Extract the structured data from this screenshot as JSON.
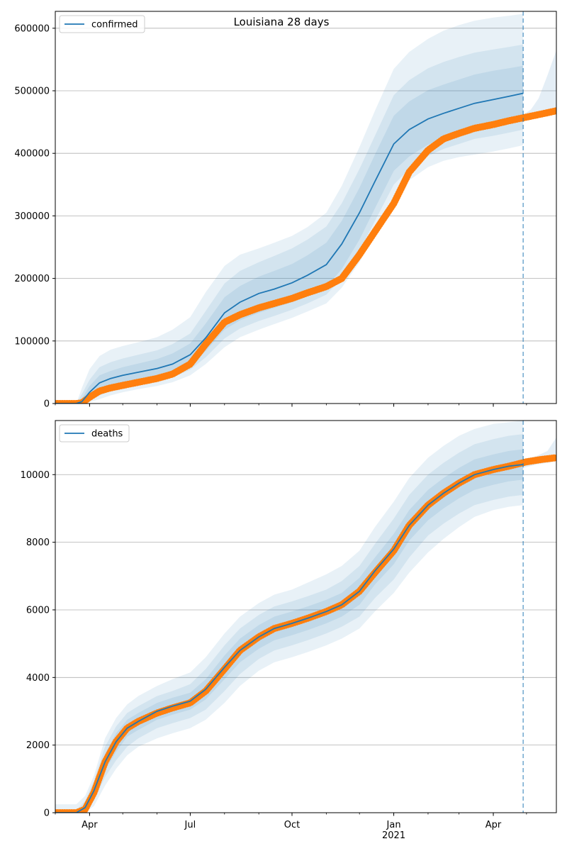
{
  "title": "Louisiana 28 days",
  "colors": {
    "line": "#1f77b4",
    "band": "#1f77b4",
    "observed": "#ff7f0e",
    "grid": "#b0b0b0"
  },
  "chart_data": [
    {
      "type": "line",
      "name": "confirmed-panel",
      "legend": [
        "confirmed"
      ],
      "legend_position": "top-left",
      "grid": "y",
      "xlim": [
        "2020-03-01",
        "2021-05-28"
      ],
      "ylim": [
        0,
        627000
      ],
      "y_ticks": [
        0,
        100000,
        200000,
        300000,
        400000,
        500000,
        600000
      ],
      "x_ticks": [
        {
          "date": "2020-04-01",
          "label": "Apr",
          "sublabel": ""
        },
        {
          "date": "2020-07-01",
          "label": "Jul",
          "sublabel": ""
        },
        {
          "date": "2020-10-01",
          "label": "Oct",
          "sublabel": ""
        },
        {
          "date": "2021-01-01",
          "label": "Jan",
          "sublabel": ""
        },
        {
          "date": "2021-04-01",
          "label": "Apr",
          "sublabel": ""
        }
      ],
      "forecast_line_date": "2021-04-28",
      "model": {
        "x": [
          "2020-03-01",
          "2020-03-20",
          "2020-03-25",
          "2020-04-01",
          "2020-04-10",
          "2020-04-20",
          "2020-05-01",
          "2020-05-15",
          "2020-06-01",
          "2020-06-15",
          "2020-07-01",
          "2020-07-15",
          "2020-08-01",
          "2020-08-15",
          "2020-09-01",
          "2020-09-15",
          "2020-10-01",
          "2020-10-15",
          "2020-11-01",
          "2020-11-15",
          "2020-12-01",
          "2020-12-15",
          "2021-01-01",
          "2021-01-15",
          "2021-02-01",
          "2021-02-15",
          "2021-03-01",
          "2021-03-15",
          "2021-04-01",
          "2021-04-15",
          "2021-04-28"
        ],
        "y": [
          0,
          0,
          3000,
          18000,
          33000,
          40000,
          45000,
          50000,
          56000,
          63000,
          78000,
          105000,
          145000,
          162000,
          176000,
          183000,
          193000,
          205000,
          222000,
          255000,
          305000,
          355000,
          415000,
          438000,
          455000,
          464000,
          472000,
          480000,
          486000,
          491000,
          496000
        ],
        "bands": [
          {
            "lo": [
              0,
              0,
              0,
              10000,
              20000,
              26000,
              31000,
              36000,
              42000,
              48000,
              62000,
              84000,
              118000,
              133000,
              145000,
              153000,
              162000,
              172000,
              186000,
              215000,
              262000,
              312000,
              372000,
              395000,
              414000,
              424000,
              432000,
              440000,
              446000,
              450000,
              455000
            ],
            "hi": [
              0,
              0,
              8000,
              28000,
              45000,
              52000,
              58000,
              64000,
              71000,
              80000,
              96000,
              128000,
              170000,
              188000,
              203000,
              212000,
              223000,
              237000,
              257000,
              292000,
              345000,
              398000,
              460000,
              483000,
              501000,
              510000,
              518000,
              526000,
              532000,
              536000,
              540000
            ]
          },
          {
            "lo": [
              0,
              0,
              0,
              5000,
              13000,
              20000,
              25000,
              30000,
              36000,
              42000,
              54000,
              74000,
              104000,
              120000,
              132000,
              140000,
              150000,
              160000,
              174000,
              200000,
              244000,
              292000,
              350000,
              375000,
              396000,
              407000,
              415000,
              423000,
              428000,
              433000,
              438000
            ],
            "hi": [
              0,
              0,
              15000,
              38000,
              58000,
              66000,
              72000,
              78000,
              85000,
              95000,
              112000,
              148000,
              192000,
              212000,
              226000,
              236000,
              248000,
              262000,
              283000,
              320000,
              375000,
              428000,
              493000,
              517000,
              536000,
              546000,
              554000,
              561000,
              566000,
              570000,
              574000
            ]
          },
          {
            "lo": [
              0,
              0,
              0,
              2000,
              7000,
              13000,
              18000,
              23000,
              28000,
              34000,
              45000,
              63000,
              90000,
              106000,
              118000,
              127000,
              137000,
              147000,
              160000,
              185000,
              226000,
              272000,
              330000,
              357000,
              378000,
              388000,
              394000,
              398000,
              403000,
              408000,
              413000
            ],
            "hi": [
              0,
              0,
              25000,
              55000,
              76000,
              86000,
              92000,
              98000,
              106000,
              118000,
              138000,
              178000,
              220000,
              238000,
              248000,
              257000,
              268000,
              282000,
              305000,
              348000,
              410000,
              468000,
              535000,
              562000,
              583000,
              596000,
              605000,
              612000,
              617000,
              620000,
              623000
            ]
          }
        ]
      },
      "observed": {
        "x": [
          "2020-03-01",
          "2020-03-20",
          "2020-03-25",
          "2020-04-01",
          "2020-04-10",
          "2020-04-20",
          "2020-05-01",
          "2020-05-15",
          "2020-06-01",
          "2020-06-15",
          "2020-07-01",
          "2020-07-15",
          "2020-08-01",
          "2020-08-15",
          "2020-09-01",
          "2020-09-15",
          "2020-10-01",
          "2020-10-15",
          "2020-11-01",
          "2020-11-15",
          "2020-12-01",
          "2020-12-15",
          "2021-01-01",
          "2021-01-15",
          "2021-02-01",
          "2021-02-15",
          "2021-03-01",
          "2021-03-15",
          "2021-04-01",
          "2021-04-15",
          "2021-05-01",
          "2021-05-15",
          "2021-05-28"
        ],
        "y": [
          0,
          0,
          1000,
          10000,
          20000,
          25000,
          29000,
          34000,
          40000,
          47000,
          63000,
          95000,
          130000,
          142000,
          153000,
          160000,
          168000,
          177000,
          187000,
          200000,
          238000,
          275000,
          320000,
          370000,
          405000,
          423000,
          432000,
          440000,
          446000,
          452000,
          458000,
          463000,
          468000
        ]
      },
      "extension": {
        "x": [
          "2021-04-28",
          "2021-05-05",
          "2021-05-12",
          "2021-05-20",
          "2021-05-28"
        ],
        "lo": [
          452000,
          455000,
          458000,
          462000,
          466000
        ],
        "hi": [
          462000,
          470000,
          488000,
          525000,
          565000
        ]
      }
    },
    {
      "type": "line",
      "name": "deaths-panel",
      "legend": [
        "deaths"
      ],
      "legend_position": "top-left",
      "grid": "y",
      "xlim": [
        "2020-03-01",
        "2021-05-28"
      ],
      "ylim": [
        0,
        11600
      ],
      "y_ticks": [
        0,
        2000,
        4000,
        6000,
        8000,
        10000
      ],
      "x_ticks": [
        {
          "date": "2020-04-01",
          "label": "Apr",
          "sublabel": ""
        },
        {
          "date": "2020-07-01",
          "label": "Jul",
          "sublabel": ""
        },
        {
          "date": "2020-10-01",
          "label": "Oct",
          "sublabel": ""
        },
        {
          "date": "2021-01-01",
          "label": "Jan",
          "sublabel": "2021"
        },
        {
          "date": "2021-04-01",
          "label": "Apr",
          "sublabel": ""
        }
      ],
      "forecast_line_date": "2021-04-28",
      "model": {
        "x": [
          "2020-03-01",
          "2020-03-20",
          "2020-03-28",
          "2020-04-05",
          "2020-04-15",
          "2020-04-25",
          "2020-05-05",
          "2020-05-15",
          "2020-06-01",
          "2020-06-15",
          "2020-07-01",
          "2020-07-15",
          "2020-08-01",
          "2020-08-15",
          "2020-09-01",
          "2020-09-15",
          "2020-10-01",
          "2020-10-15",
          "2020-11-01",
          "2020-11-15",
          "2020-12-01",
          "2020-12-15",
          "2021-01-01",
          "2021-01-15",
          "2021-02-01",
          "2021-02-15",
          "2021-03-01",
          "2021-03-15",
          "2021-04-01",
          "2021-04-15",
          "2021-04-28"
        ],
        "y": [
          0,
          0,
          150,
          650,
          1500,
          2100,
          2500,
          2700,
          3000,
          3150,
          3300,
          3650,
          4300,
          4800,
          5200,
          5450,
          5600,
          5750,
          5950,
          6150,
          6550,
          7150,
          7800,
          8500,
          9100,
          9450,
          9750,
          10000,
          10150,
          10250,
          10300
        ],
        "bands": [
          {
            "lo": [
              0,
              0,
              60,
              500,
              1250,
              1800,
              2250,
              2450,
              2750,
              2900,
              3050,
              3350,
              3950,
              4450,
              4850,
              5100,
              5250,
              5400,
              5600,
              5800,
              6150,
              6750,
              7350,
              8050,
              8650,
              9000,
              9300,
              9550,
              9700,
              9800,
              9850
            ],
            "hi": [
              0,
              0,
              250,
              800,
              1750,
              2350,
              2750,
              2950,
              3250,
              3400,
              3550,
              3950,
              4650,
              5150,
              5550,
              5800,
              5950,
              6100,
              6300,
              6500,
              6950,
              7550,
              8250,
              8950,
              9550,
              9900,
              10200,
              10450,
              10600,
              10700,
              10750
            ]
          },
          {
            "lo": [
              0,
              0,
              20,
              350,
              1050,
              1550,
              1950,
              2200,
              2500,
              2650,
              2800,
              3050,
              3600,
              4100,
              4550,
              4800,
              4950,
              5100,
              5300,
              5500,
              5800,
              6350,
              6900,
              7550,
              8200,
              8550,
              8850,
              9100,
              9250,
              9350,
              9400
            ],
            "hi": [
              80,
              80,
              350,
              950,
              1950,
              2550,
              2950,
              3150,
              3450,
              3600,
              3800,
              4250,
              4950,
              5450,
              5850,
              6100,
              6250,
              6400,
              6600,
              6850,
              7300,
              7950,
              8700,
              9400,
              10000,
              10350,
              10650,
              10900,
              11050,
              11150,
              11200
            ]
          },
          {
            "lo": [
              0,
              0,
              0,
              200,
              800,
              1300,
              1700,
              1950,
              2200,
              2350,
              2500,
              2750,
              3250,
              3750,
              4200,
              4450,
              4600,
              4750,
              4950,
              5150,
              5450,
              5950,
              6500,
              7100,
              7700,
              8100,
              8450,
              8750,
              8950,
              9050,
              9100
            ],
            "hi": [
              250,
              250,
              500,
              1100,
              2200,
              2800,
              3200,
              3450,
              3750,
              3950,
              4150,
              4600,
              5300,
              5800,
              6200,
              6450,
              6600,
              6800,
              7050,
              7300,
              7750,
              8450,
              9200,
              9900,
              10500,
              10850,
              11150,
              11350,
              11500,
              11550,
              11600
            ]
          }
        ]
      },
      "observed": {
        "x": [
          "2020-03-01",
          "2020-03-20",
          "2020-03-28",
          "2020-04-05",
          "2020-04-15",
          "2020-04-25",
          "2020-05-05",
          "2020-05-15",
          "2020-06-01",
          "2020-06-15",
          "2020-07-01",
          "2020-07-15",
          "2020-08-01",
          "2020-08-15",
          "2020-09-01",
          "2020-09-15",
          "2020-10-01",
          "2020-10-15",
          "2020-11-01",
          "2020-11-15",
          "2020-12-01",
          "2020-12-15",
          "2021-01-01",
          "2021-01-15",
          "2021-02-01",
          "2021-02-15",
          "2021-03-01",
          "2021-03-15",
          "2021-04-01",
          "2021-04-15",
          "2021-05-01",
          "2021-05-15",
          "2021-05-28"
        ],
        "y": [
          0,
          0,
          100,
          600,
          1500,
          2100,
          2500,
          2700,
          2950,
          3100,
          3250,
          3600,
          4250,
          4800,
          5200,
          5450,
          5600,
          5750,
          5950,
          6150,
          6550,
          7100,
          7750,
          8500,
          9100,
          9450,
          9750,
          10000,
          10150,
          10250,
          10380,
          10450,
          10500
        ]
      },
      "extension": {
        "x": [
          "2021-04-28",
          "2021-05-10",
          "2021-05-20",
          "2021-05-28"
        ],
        "lo": [
          10200,
          10300,
          10350,
          10400
        ],
        "hi": [
          10450,
          10550,
          10700,
          11100
        ]
      }
    }
  ]
}
